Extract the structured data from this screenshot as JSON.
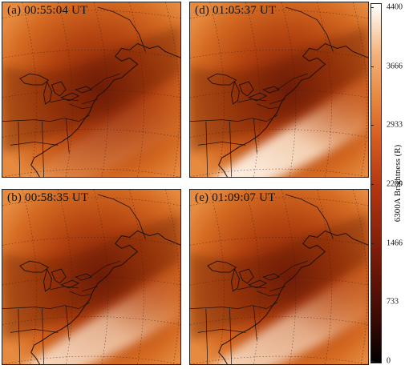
{
  "panels": [
    {
      "id": "a",
      "label": "(a) 00:55:04 UT",
      "arc": 0.15
    },
    {
      "id": "d",
      "label": "(d) 01:05:37 UT",
      "arc": 0.95
    },
    {
      "id": "b",
      "label": "(b) 00:58:35 UT",
      "arc": 0.75
    },
    {
      "id": "e",
      "label": "(e)  01:09:07 UT",
      "arc": 0.7
    }
  ],
  "colorbar": {
    "title": "6300A Brightness (R)",
    "ticks": [
      "4400",
      "3666",
      "2933",
      "2200",
      "1466",
      "733",
      "0"
    ],
    "colors": [
      "#000000",
      "#7a1a08",
      "#d65a1e",
      "#f2b27a",
      "#ffffff"
    ]
  }
}
